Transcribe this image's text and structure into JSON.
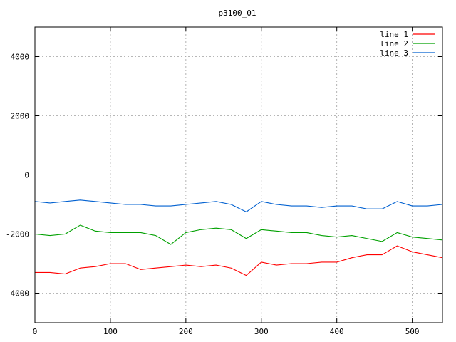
{
  "chart_data": {
    "type": "line",
    "title": "p3100_01",
    "xlabel": "",
    "ylabel": "",
    "xlim": [
      0,
      540
    ],
    "ylim": [
      -5000,
      5000
    ],
    "x_ticks": [
      0,
      100,
      200,
      300,
      400,
      500
    ],
    "y_ticks": [
      -4000,
      -2000,
      0,
      2000,
      4000
    ],
    "grid": true,
    "legend_position": "top-right",
    "colors": {
      "series": [
        "#ff0000",
        "#00a000",
        "#0060d0"
      ],
      "grid": "#a0a0a0",
      "axis": "#000000"
    },
    "x": [
      0,
      20,
      40,
      60,
      80,
      100,
      120,
      140,
      160,
      180,
      200,
      220,
      240,
      260,
      280,
      300,
      320,
      340,
      360,
      380,
      400,
      420,
      440,
      460,
      480,
      500,
      520,
      540
    ],
    "series": [
      {
        "name": "line 1",
        "values": [
          -3300,
          -3300,
          -3350,
          -3150,
          -3100,
          -3000,
          -3000,
          -3200,
          -3150,
          -3100,
          -3050,
          -3100,
          -3050,
          -3150,
          -3400,
          -2950,
          -3050,
          -3000,
          -3000,
          -2950,
          -2950,
          -2800,
          -2700,
          -2700,
          -2400,
          -2600,
          -2700,
          -2800
        ]
      },
      {
        "name": "line 2",
        "values": [
          -2000,
          -2050,
          -2000,
          -1700,
          -1900,
          -1950,
          -1950,
          -1950,
          -2050,
          -2350,
          -1950,
          -1850,
          -1800,
          -1850,
          -2150,
          -1850,
          -1900,
          -1950,
          -1950,
          -2050,
          -2100,
          -2050,
          -2150,
          -2250,
          -1950,
          -2100,
          -2150,
          -2200
        ]
      },
      {
        "name": "line 3",
        "values": [
          -900,
          -950,
          -900,
          -850,
          -900,
          -950,
          -1000,
          -1000,
          -1050,
          -1050,
          -1000,
          -950,
          -900,
          -1000,
          -1250,
          -900,
          -1000,
          -1050,
          -1050,
          -1100,
          -1050,
          -1050,
          -1150,
          -1150,
          -900,
          -1050,
          -1050,
          -1000
        ]
      }
    ]
  }
}
